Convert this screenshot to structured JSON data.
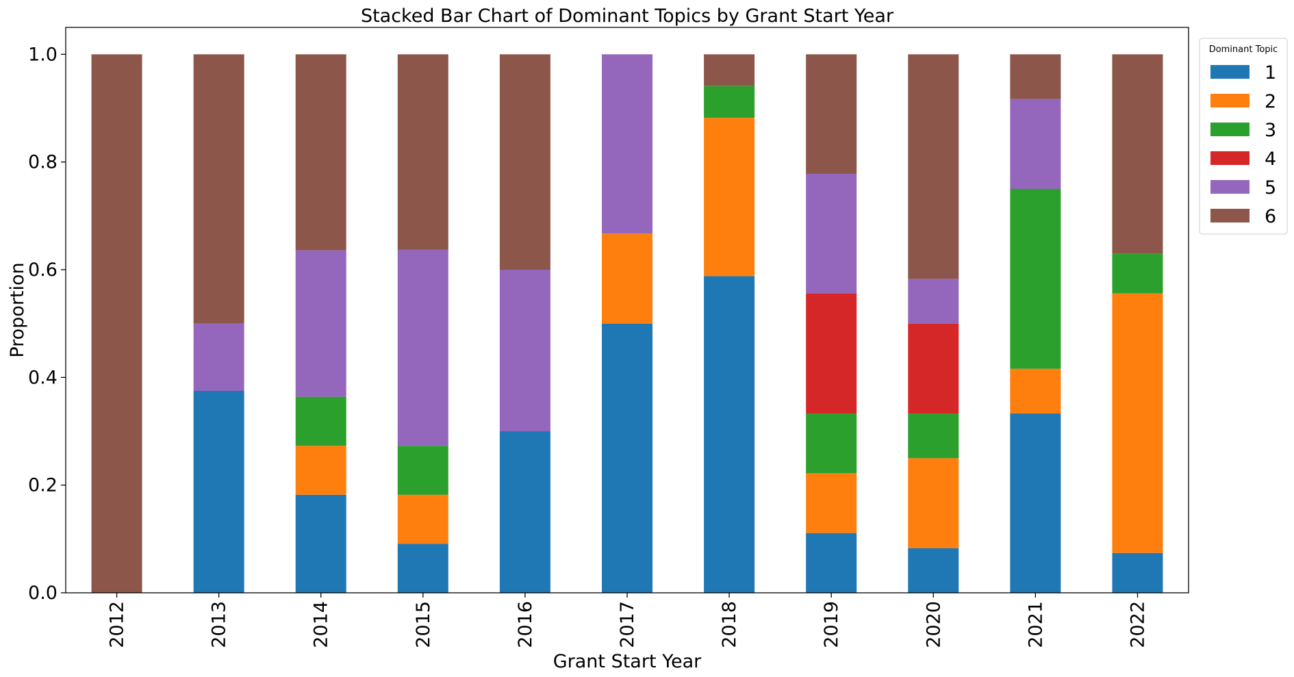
{
  "chart_data": {
    "type": "bar",
    "stacked": true,
    "title": "Stacked Bar Chart of Dominant Topics by Grant Start Year",
    "xlabel": "Grant Start Year",
    "ylabel": "Proportion",
    "ylim": [
      0,
      1.05
    ],
    "yticks": [
      "0.0",
      "0.2",
      "0.4",
      "0.6",
      "0.8",
      "1.0"
    ],
    "ytick_values": [
      0,
      0.2,
      0.4,
      0.6,
      0.8,
      1.0
    ],
    "grid": false,
    "legend": {
      "title": "Dominant Topic",
      "placement": "outside-top-right"
    },
    "categories": [
      "2012",
      "2013",
      "2014",
      "2015",
      "2016",
      "2017",
      "2018",
      "2019",
      "2020",
      "2021",
      "2022"
    ],
    "series": [
      {
        "name": "1",
        "color": "#1f77b4",
        "values": [
          0,
          0.375,
          0.182,
          0.091,
          0.3,
          0.5,
          0.588,
          0.111,
          0.083,
          0.333,
          0.074
        ]
      },
      {
        "name": "2",
        "color": "#ff7f0e",
        "values": [
          0,
          0,
          0.091,
          0.091,
          0,
          0.167,
          0.294,
          0.111,
          0.167,
          0.083,
          0.482
        ]
      },
      {
        "name": "3",
        "color": "#2ca02c",
        "values": [
          0,
          0,
          0.091,
          0.091,
          0,
          0,
          0.059,
          0.111,
          0.083,
          0.334,
          0.074
        ]
      },
      {
        "name": "4",
        "color": "#d62728",
        "values": [
          0,
          0,
          0,
          0,
          0,
          0,
          0,
          0.223,
          0.167,
          0,
          0
        ]
      },
      {
        "name": "5",
        "color": "#9467bd",
        "values": [
          0,
          0.125,
          0.272,
          0.364,
          0.3,
          0.333,
          0,
          0.222,
          0.083,
          0.167,
          0
        ]
      },
      {
        "name": "6",
        "color": "#8c564b",
        "values": [
          1.0,
          0.5,
          0.364,
          0.363,
          0.4,
          0,
          0.059,
          0.222,
          0.417,
          0.083,
          0.37
        ]
      }
    ]
  }
}
